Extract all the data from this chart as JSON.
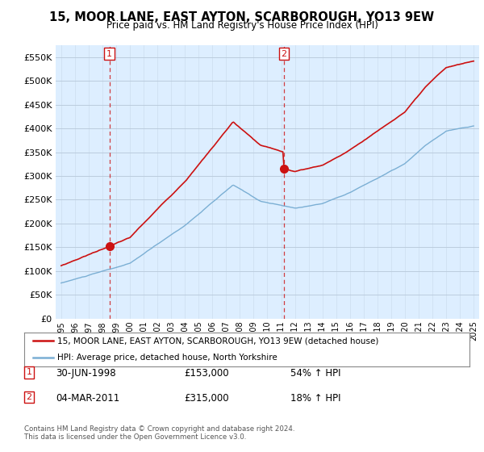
{
  "title": "15, MOOR LANE, EAST AYTON, SCARBOROUGH, YO13 9EW",
  "subtitle": "Price paid vs. HM Land Registry's House Price Index (HPI)",
  "legend_line1": "15, MOOR LANE, EAST AYTON, SCARBOROUGH, YO13 9EW (detached house)",
  "legend_line2": "HPI: Average price, detached house, North Yorkshire",
  "sale1_date": "30-JUN-1998",
  "sale1_price": "£153,000",
  "sale1_hpi": "54% ↑ HPI",
  "sale2_date": "04-MAR-2011",
  "sale2_price": "£315,000",
  "sale2_hpi": "18% ↑ HPI",
  "footnote": "Contains HM Land Registry data © Crown copyright and database right 2024.\nThis data is licensed under the Open Government Licence v3.0.",
  "hpi_color": "#7bafd4",
  "price_color": "#cc1111",
  "marker_color": "#cc1111",
  "background_color": "#ffffff",
  "plot_bg_color": "#ddeeff",
  "grid_color": "#bbccdd",
  "ylim": [
    0,
    575000
  ],
  "yticks": [
    0,
    50000,
    100000,
    150000,
    200000,
    250000,
    300000,
    350000,
    400000,
    450000,
    500000,
    550000
  ],
  "x_start_year": 1995,
  "x_end_year": 2025,
  "sale1_year": 1998.5,
  "sale2_year": 2011.2
}
